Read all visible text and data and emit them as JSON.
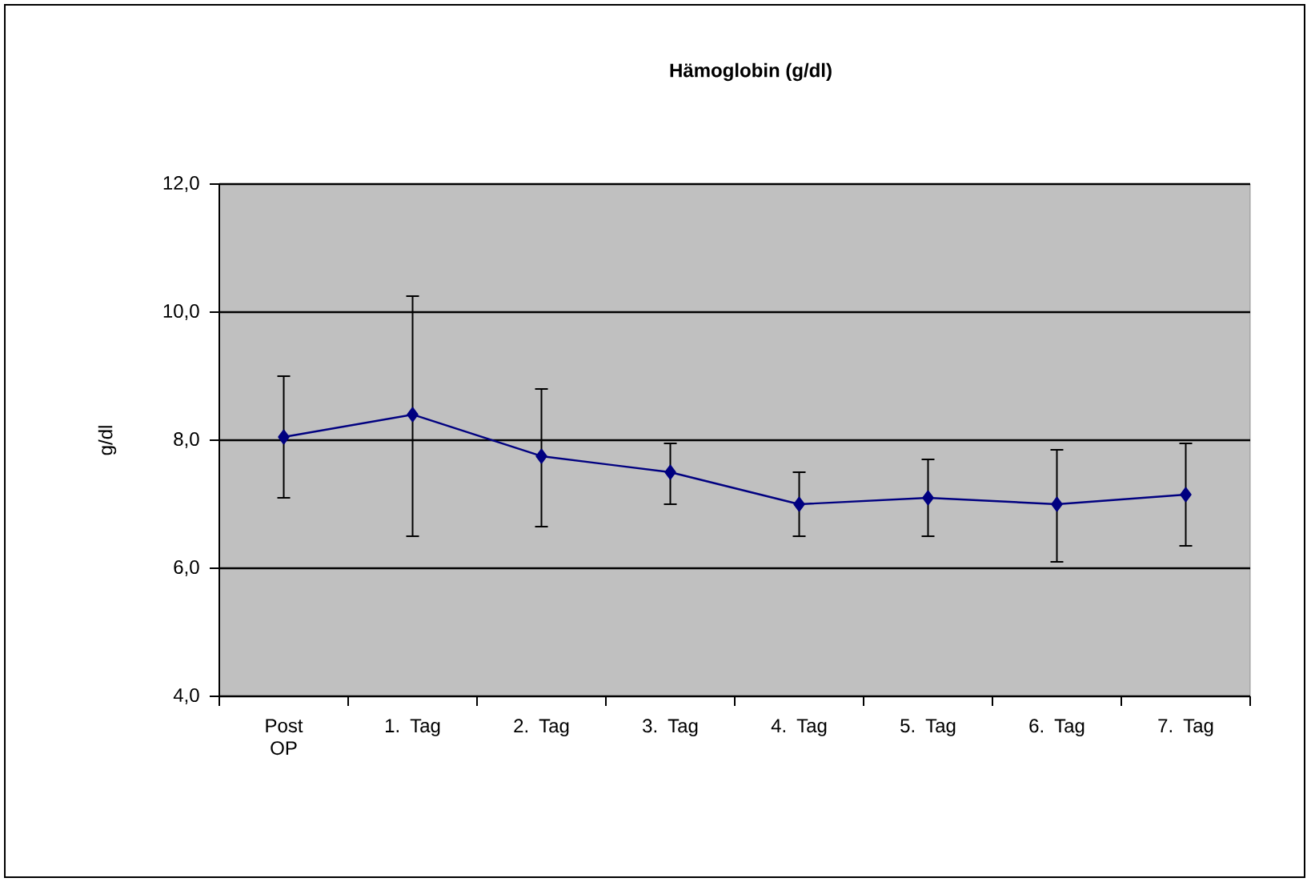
{
  "chart_data": {
    "type": "line",
    "title": "Hämoglobin (g/dl)",
    "ylabel": "g/dl",
    "categories": [
      "Post OP",
      "1. Tag",
      "2. Tag",
      "3. Tag",
      "4. Tag",
      "5. Tag",
      "6. Tag",
      "7. Tag"
    ],
    "values": [
      8.05,
      8.4,
      7.75,
      7.5,
      7.0,
      7.1,
      7.0,
      7.15
    ],
    "errors": [
      [
        7.1,
        9.0
      ],
      [
        6.5,
        10.25
      ],
      [
        6.65,
        8.8
      ],
      [
        7.0,
        7.95
      ],
      [
        6.5,
        7.5
      ],
      [
        6.5,
        7.7
      ],
      [
        6.1,
        7.85
      ],
      [
        6.35,
        7.95
      ]
    ],
    "color": "#000080",
    "marker": "diamond",
    "grid": "y",
    "ylim": [
      4,
      12
    ],
    "yticks": [
      {
        "value": 4,
        "label": "4,0"
      },
      {
        "value": 6,
        "label": "6,0"
      },
      {
        "value": 8,
        "label": "8,0"
      },
      {
        "value": 10,
        "label": "10,0"
      },
      {
        "value": 12,
        "label": "12,0"
      }
    ]
  }
}
